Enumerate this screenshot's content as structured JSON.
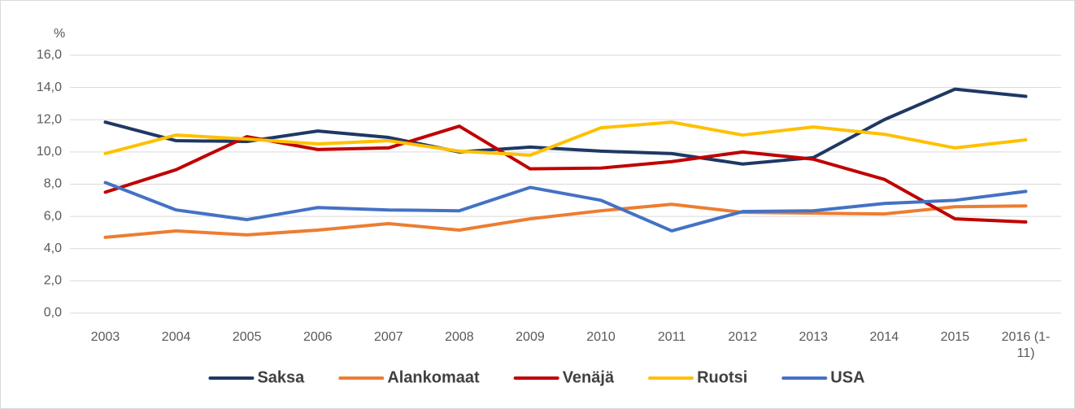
{
  "chart_data": {
    "type": "line",
    "y_axis_label": "%",
    "categories": [
      "2003",
      "2004",
      "2005",
      "2006",
      "2007",
      "2008",
      "2009",
      "2010",
      "2011",
      "2012",
      "2013",
      "2014",
      "2015",
      "2016 (1-11)"
    ],
    "series": [
      {
        "name": "Saksa",
        "color": "#1f3864",
        "values": [
          11.85,
          10.7,
          10.65,
          11.3,
          10.9,
          10.0,
          10.3,
          10.05,
          9.9,
          9.25,
          9.65,
          12.0,
          13.9,
          13.45
        ]
      },
      {
        "name": "Alankomaat",
        "color": "#ed7d31",
        "values": [
          4.7,
          5.1,
          4.85,
          5.15,
          5.55,
          5.15,
          5.85,
          6.35,
          6.75,
          6.25,
          6.2,
          6.15,
          6.6,
          6.65
        ]
      },
      {
        "name": "Venäjä",
        "color": "#c00000",
        "values": [
          7.5,
          8.9,
          10.95,
          10.15,
          10.25,
          11.6,
          8.95,
          9.0,
          9.4,
          10.0,
          9.55,
          8.3,
          5.85,
          5.65
        ]
      },
      {
        "name": "Ruotsi",
        "color": "#ffc000",
        "values": [
          9.9,
          11.05,
          10.8,
          10.5,
          10.7,
          10.05,
          9.8,
          11.5,
          11.85,
          11.05,
          11.55,
          11.1,
          10.25,
          10.75
        ]
      },
      {
        "name": "USA",
        "color": "#4472c4",
        "values": [
          8.1,
          6.4,
          5.8,
          6.55,
          6.4,
          6.35,
          7.8,
          7.0,
          5.1,
          6.3,
          6.35,
          6.8,
          7.0,
          7.55
        ]
      }
    ],
    "ylim": [
      0,
      16
    ],
    "yticks": [
      {
        "value": 0,
        "label": "0,0"
      },
      {
        "value": 2,
        "label": "2,0"
      },
      {
        "value": 4,
        "label": "4,0"
      },
      {
        "value": 6,
        "label": "6,0"
      },
      {
        "value": 8,
        "label": "8,0"
      },
      {
        "value": 10,
        "label": "10,0"
      },
      {
        "value": 12,
        "label": "12,0"
      },
      {
        "value": 14,
        "label": "14,0"
      },
      {
        "value": 16,
        "label": "16,0"
      }
    ],
    "grid": true,
    "legend": "bottom"
  }
}
